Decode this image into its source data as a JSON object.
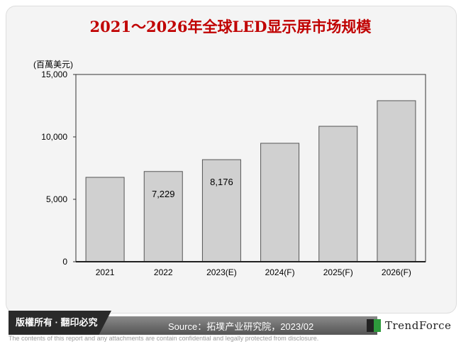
{
  "title": "2021～2026年全球LED显示屏市场规模",
  "footer": {
    "copyright": "版權所有 · 翻印必究",
    "source": "Source：拓墣产业研究院，2023/02",
    "brand": "TrendForce",
    "disclaimer": "The contents of this report and any attachments are contain confidential and legally protected from disclosure."
  },
  "chart_data": {
    "type": "bar",
    "title": "2021～2026年全球LED显示屏市场规模",
    "ylabel": "(百萬美元)",
    "xlabel": "",
    "categories": [
      "2021",
      "2022",
      "2023(E)",
      "2024(F)",
      "2025(F)",
      "2026(F)"
    ],
    "values": [
      6760,
      7229,
      8176,
      9490,
      10850,
      12900
    ],
    "data_labels": [
      "",
      "7,229",
      "8,176",
      "",
      "",
      ""
    ],
    "ylim": [
      0,
      15000
    ],
    "yticks": [
      0,
      5000,
      10000,
      15000
    ],
    "ytick_labels": [
      "0",
      "5,000",
      "10,000",
      "15,000"
    ],
    "grid": false,
    "legend": "none",
    "bar_color": "#d0d0d0",
    "bar_edge_color": "#555555",
    "title_color": "#c00000"
  }
}
